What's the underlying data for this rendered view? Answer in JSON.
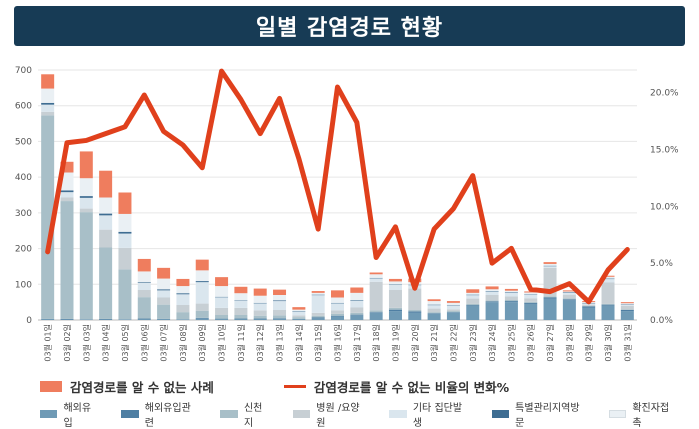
{
  "title": "일별 감염경로 현황",
  "colors": {
    "title_bg": "#173b55",
    "overseas": "#6f9ab5",
    "overseas_related": "#4f7fa3",
    "shincheonji": "#a8bfc8",
    "hospital": "#c7cfd4",
    "other_cluster": "#dae6ee",
    "special": "#3e6d92",
    "contact": "#eaf0f4",
    "unknown": "#ef7d5e",
    "line": "#e0401c",
    "grid": "#e6e6e6"
  },
  "chart_data": {
    "type": "bar",
    "stacked": true,
    "categories": [
      "03월 01일",
      "03월 02일",
      "03월 03일",
      "03월 04일",
      "03월 05일",
      "03월 06일",
      "03월 07일",
      "03월 08일",
      "03월 09일",
      "03월 10일",
      "03월 11일",
      "03월 12일",
      "03월 13일",
      "03월 14일",
      "03월 15일",
      "03월 16일",
      "03월 17일",
      "03월 18일",
      "03월 19일",
      "03월 20일",
      "03월 21일",
      "03월 22일",
      "03월 23일",
      "03월 24일",
      "03월 25일",
      "03월 26일",
      "03월 27일",
      "03월 28일",
      "03월 29일",
      "03월 30일",
      "03월 31일"
    ],
    "y_left": {
      "min": 0,
      "max": 700,
      "ticks": [
        0,
        100,
        200,
        300,
        400,
        500,
        600,
        700
      ]
    },
    "y_right": {
      "min": 0,
      "max": 0.22,
      "ticks": [
        0,
        0.05,
        0.1,
        0.15,
        0.2
      ],
      "tick_labels": [
        "0.0%",
        "5.0%",
        "10.0%",
        "15.0%",
        "20.0%"
      ]
    },
    "series": [
      {
        "name": "해외유입",
        "key": "overseas",
        "values": [
          3,
          2,
          2,
          2,
          2,
          3,
          3,
          2,
          5,
          4,
          3,
          3,
          4,
          3,
          6,
          10,
          13,
          20,
          25,
          20,
          17,
          20,
          40,
          50,
          50,
          45,
          60,
          55,
          35,
          40,
          25
        ]
      },
      {
        "name": "해외유입관련",
        "key": "overseas_related",
        "values": [
          0,
          1,
          0,
          1,
          0,
          1,
          0,
          0,
          1,
          0,
          1,
          1,
          1,
          0,
          1,
          2,
          2,
          2,
          4,
          4,
          2,
          2,
          2,
          2,
          3,
          3,
          3,
          3,
          3,
          3,
          3
        ]
      },
      {
        "name": "신천지",
        "key": "shincheonji",
        "values": [
          570,
          330,
          300,
          200,
          140,
          60,
          40,
          20,
          20,
          10,
          10,
          8,
          8,
          5,
          5,
          5,
          5,
          5,
          5,
          4,
          3,
          3,
          3,
          3,
          3,
          3,
          3,
          3,
          2,
          2,
          2
        ]
      },
      {
        "name": "병원 /요양원",
        "key": "hospital",
        "values": [
          10,
          10,
          10,
          50,
          60,
          20,
          20,
          20,
          20,
          20,
          20,
          15,
          15,
          5,
          8,
          10,
          15,
          80,
          50,
          60,
          10,
          5,
          15,
          15,
          10,
          10,
          80,
          10,
          3,
          60,
          10
        ]
      },
      {
        "name": "기타 집단발생",
        "key": "other_cluster",
        "values": [
          20,
          15,
          30,
          40,
          40,
          20,
          20,
          30,
          60,
          30,
          20,
          20,
          25,
          10,
          50,
          20,
          20,
          10,
          15,
          10,
          10,
          10,
          10,
          10,
          10,
          10,
          5,
          5,
          3,
          10,
          3
        ]
      },
      {
        "name": "특별관리지역방문",
        "key": "special",
        "values": [
          5,
          5,
          5,
          5,
          5,
          2,
          3,
          3,
          3,
          1,
          1,
          1,
          2,
          1,
          1,
          1,
          1,
          1,
          1,
          1,
          1,
          1,
          1,
          1,
          1,
          1,
          1,
          1,
          1,
          1,
          1
        ]
      },
      {
        "name": "확진자접촉",
        "key": "contact",
        "values": [
          40,
          50,
          50,
          45,
          50,
          30,
          30,
          20,
          30,
          30,
          20,
          20,
          15,
          5,
          5,
          15,
          20,
          10,
          8,
          7,
          10,
          7,
          5,
          5,
          5,
          5,
          5,
          3,
          3,
          5,
          3
        ]
      },
      {
        "name": "감염경로를 알 수 없는 사례",
        "key": "unknown",
        "values": [
          40,
          30,
          75,
          75,
          60,
          35,
          30,
          20,
          30,
          25,
          18,
          20,
          15,
          7,
          5,
          20,
          15,
          5,
          7,
          10,
          5,
          5,
          10,
          8,
          5,
          3,
          5,
          3,
          3,
          3,
          3
        ]
      }
    ],
    "line": {
      "name": "감염경로를 알 수 없는 비율의 변화%",
      "values": [
        0.06,
        0.156,
        0.158,
        0.164,
        0.17,
        0.198,
        0.166,
        0.154,
        0.134,
        0.219,
        0.194,
        0.164,
        0.195,
        0.142,
        0.08,
        0.205,
        0.174,
        0.055,
        0.082,
        0.028,
        0.08,
        0.098,
        0.127,
        0.05,
        0.063,
        0.027,
        0.025,
        0.032,
        0.016,
        0.044,
        0.062
      ]
    }
  },
  "legend": {
    "unknown_label": "감염경로를 알 수 없는 사례",
    "ratio_label": "감염경로를 알 수 없는 비율의 변화%",
    "small": [
      "해외유입",
      "해외유입관련",
      "신천지",
      "병원 /요양원",
      "기타 집단발생",
      "특별관리지역방문",
      "확진자접촉"
    ]
  }
}
